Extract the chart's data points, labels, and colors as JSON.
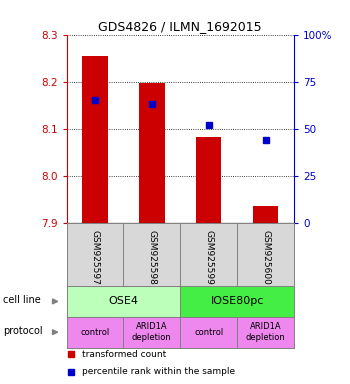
{
  "title": "GDS4826 / ILMN_1692015",
  "samples": [
    "GSM925597",
    "GSM925598",
    "GSM925599",
    "GSM925600"
  ],
  "bar_values": [
    8.255,
    8.197,
    8.083,
    7.935
  ],
  "bar_baseline": 7.9,
  "blue_values": [
    65,
    63,
    52,
    44
  ],
  "ylim_left": [
    7.9,
    8.3
  ],
  "ylim_right": [
    0,
    100
  ],
  "yticks_left": [
    7.9,
    8.0,
    8.1,
    8.2,
    8.3
  ],
  "yticks_right": [
    0,
    25,
    50,
    75,
    100
  ],
  "ytick_labels_right": [
    "0",
    "25",
    "50",
    "75",
    "100%"
  ],
  "bar_color": "#cc0000",
  "blue_color": "#0000cc",
  "cell_line_labels": [
    "OSE4",
    "IOSE80pc"
  ],
  "cell_line_spans": [
    [
      0,
      1
    ],
    [
      2,
      3
    ]
  ],
  "cell_line_color_ose4": "#bbffbb",
  "cell_line_color_iose80": "#44ee44",
  "protocol_labels": [
    "control",
    "ARID1A\ndepletion",
    "control",
    "ARID1A\ndepletion"
  ],
  "protocol_color": "#ee88ee",
  "sample_bg_color": "#d8d8d8",
  "title_fontsize": 9
}
